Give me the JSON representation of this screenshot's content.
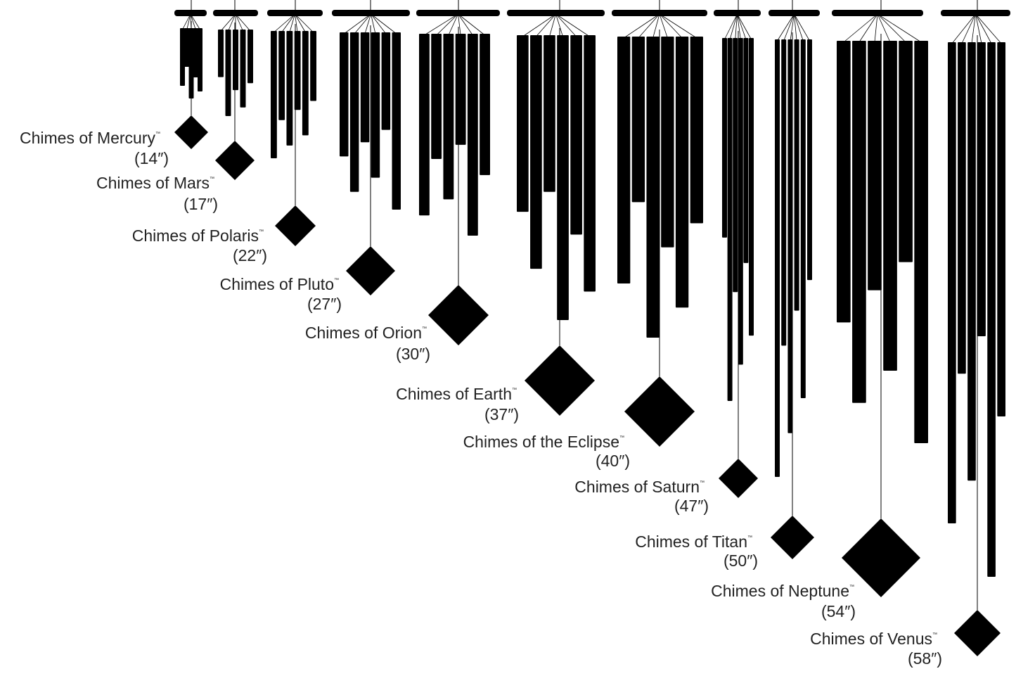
{
  "chimes": [
    {
      "name": "Chimes of Mercury",
      "mark": "™",
      "size": "(14″)"
    },
    {
      "name": "Chimes of Mars",
      "mark": "™",
      "size": "(17″)"
    },
    {
      "name": "Chimes of Polaris",
      "mark": "™",
      "size": "(22″)"
    },
    {
      "name": "Chimes of Pluto",
      "mark": "™",
      "size": "(27″)"
    },
    {
      "name": "Chimes of Orion",
      "mark": "™",
      "size": "(30″)"
    },
    {
      "name": "Chimes of Earth",
      "mark": "™",
      "size": "(37″)"
    },
    {
      "name": "Chimes of the Eclipse",
      "mark": "™",
      "size": "(40″)"
    },
    {
      "name": "Chimes of Saturn",
      "mark": "™",
      "size": "(47″)"
    },
    {
      "name": "Chimes of Titan",
      "mark": "™",
      "size": "(50″)"
    },
    {
      "name": "Chimes of Neptune",
      "mark": "™",
      "size": "(54″)"
    },
    {
      "name": "Chimes of Venus",
      "mark": "™",
      "size": "(58″)"
    }
  ]
}
